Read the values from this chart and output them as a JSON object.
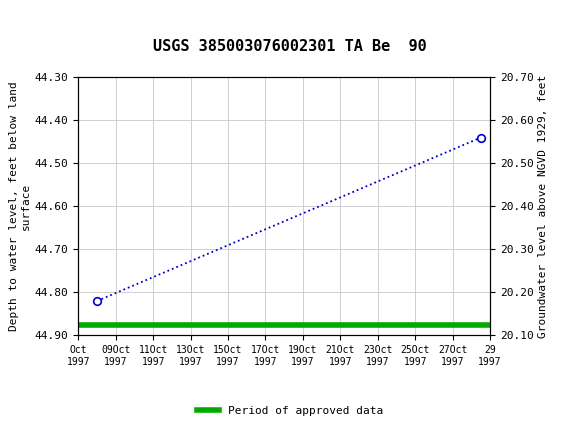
{
  "title": "USGS 385003076002301 TA Be  90",
  "ylabel_left": "Depth to water level, feet below land\nsurface",
  "ylabel_right": "Groundwater level above NGVD 1929, feet",
  "ylim_left": [
    44.9,
    44.3
  ],
  "ylim_right": [
    20.1,
    20.7
  ],
  "yticks_left": [
    44.3,
    44.4,
    44.5,
    44.6,
    44.7,
    44.8,
    44.9
  ],
  "yticks_right": [
    20.7,
    20.6,
    20.5,
    20.4,
    20.3,
    20.2,
    20.1
  ],
  "x_tick_positions": [
    0,
    2,
    4,
    6,
    8,
    10,
    12,
    14,
    16,
    18,
    20,
    22
  ],
  "x_tick_line1": [
    "Oct",
    "09Oct",
    "11Oct",
    "13Oct",
    "15Oct",
    "17Oct",
    "19Oct",
    "21Oct",
    "23Oct",
    "25Oct",
    "27Oct",
    "29"
  ],
  "x_tick_line2": [
    "1997",
    "1997",
    "1997",
    "1997",
    "1997",
    "1997",
    "1997",
    "1997",
    "1997",
    "1997",
    "1997",
    "1997"
  ],
  "data_x": [
    1.0,
    21.5
  ],
  "data_y": [
    44.82,
    44.44
  ],
  "green_line_y": 44.875,
  "header_color": "#1a6e3c",
  "line_color": "#0000cc",
  "green_color": "#00aa00",
  "marker_color": "#0000cc",
  "bg_color": "#ffffff",
  "grid_color": "#c8c8c8",
  "legend_label": "Period of approved data",
  "title_fontsize": 11,
  "axis_fontsize": 8,
  "tick_fontsize": 8
}
